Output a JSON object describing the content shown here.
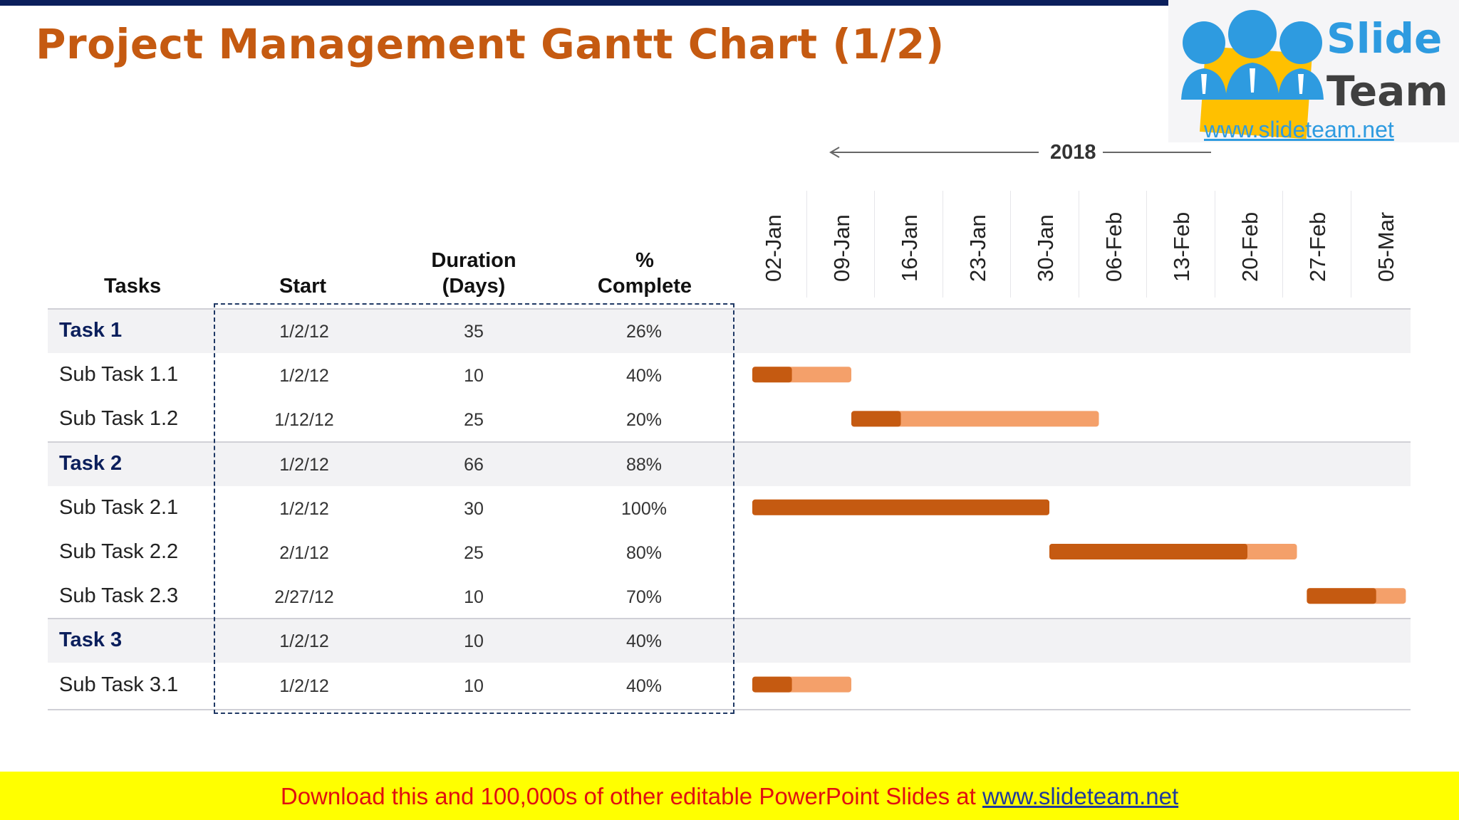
{
  "title": "Project Management Gantt Chart (1/2)",
  "logo": {
    "line1": "Slide",
    "line2": "Team",
    "url": "www.slideteam.net"
  },
  "year": "2018",
  "headers": {
    "tasks": "Tasks",
    "start": "Start",
    "duration_1": "Duration",
    "duration_2": "(Days)",
    "complete_1": "%",
    "complete_2": "Complete"
  },
  "rows": [
    {
      "task": "Task 1",
      "level": "task",
      "start": "1/2/12",
      "duration": "35",
      "complete": "26%"
    },
    {
      "task": "Sub Task 1.1",
      "level": "sub",
      "start": "1/2/12",
      "duration": "10",
      "complete": "40%"
    },
    {
      "task": "Sub Task 1.2",
      "level": "sub",
      "start": "1/12/12",
      "duration": "25",
      "complete": "20%"
    },
    {
      "task": "Task 2",
      "level": "task",
      "start": "1/2/12",
      "duration": "66",
      "complete": "88%"
    },
    {
      "task": "Sub Task 2.1",
      "level": "sub",
      "start": "1/2/12",
      "duration": "30",
      "complete": "100%"
    },
    {
      "task": "Sub Task 2.2",
      "level": "sub",
      "start": "2/1/12",
      "duration": "25",
      "complete": "80%"
    },
    {
      "task": "Sub Task 2.3",
      "level": "sub",
      "start": "2/27/12",
      "duration": "10",
      "complete": "70%"
    },
    {
      "task": "Task 3",
      "level": "task",
      "start": "1/2/12",
      "duration": "10",
      "complete": "40%"
    },
    {
      "task": "Sub Task 3.1",
      "level": "sub",
      "start": "1/2/12",
      "duration": "10",
      "complete": "40%"
    }
  ],
  "footer": {
    "text": "Download this and 100,000s of other editable PowerPoint Slides at ",
    "link": "www.slideteam.net"
  },
  "chart_data": {
    "type": "bar",
    "subtype": "gantt",
    "x_tick_labels": [
      "02-Jan",
      "09-Jan",
      "16-Jan",
      "23-Jan",
      "30-Jan",
      "06-Feb",
      "13-Feb",
      "20-Feb",
      "27-Feb",
      "05-Mar"
    ],
    "x_range": [
      "2012-01-02",
      "2012-03-12"
    ],
    "series": [
      {
        "task": "Task 1",
        "start": "2012-01-02",
        "duration_days": 35,
        "complete_pct": 26
      },
      {
        "task": "Sub Task 1.1",
        "start": "2012-01-02",
        "duration_days": 10,
        "complete_pct": 40
      },
      {
        "task": "Sub Task 1.2",
        "start": "2012-01-12",
        "duration_days": 25,
        "complete_pct": 20
      },
      {
        "task": "Task 2",
        "start": "2012-01-02",
        "duration_days": 66,
        "complete_pct": 88
      },
      {
        "task": "Sub Task 2.1",
        "start": "2012-01-02",
        "duration_days": 30,
        "complete_pct": 100
      },
      {
        "task": "Sub Task 2.2",
        "start": "2012-02-01",
        "duration_days": 25,
        "complete_pct": 80
      },
      {
        "task": "Sub Task 2.3",
        "start": "2012-02-27",
        "duration_days": 10,
        "complete_pct": 70
      },
      {
        "task": "Task 3",
        "start": "2012-01-02",
        "duration_days": 10,
        "complete_pct": 40
      },
      {
        "task": "Sub Task 3.1",
        "start": "2012-01-02",
        "duration_days": 10,
        "complete_pct": 40
      }
    ],
    "colors": {
      "task_done": "#0b1f5c",
      "task_remaining": "#2f6ef2",
      "sub_done": "#c55a11",
      "sub_remaining": "#f4a06a"
    }
  }
}
